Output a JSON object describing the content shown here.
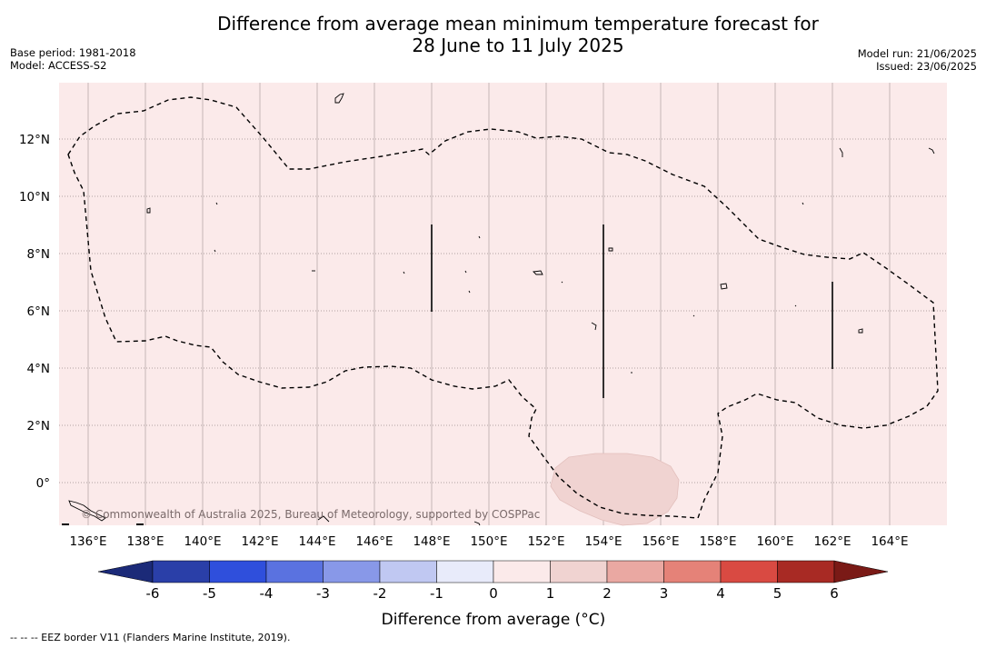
{
  "title_line1": "Difference from average mean minimum temperature forecast for",
  "title_line2": "28 June to 11 July 2025",
  "base_period": "Base period: 1981-2018",
  "model": "Model: ACCESS-S2",
  "model_run": "Model run: 21/06/2025",
  "issued": "Issued: 23/06/2025",
  "copyright": "© Commonwealth of Australia 2025, Bureau of Meteorology, supported by COSPPac",
  "footer": "--  --  -- EEZ border V11 (Flanders Marine Institute, 2019).",
  "map": {
    "lon_ticks": [
      "136°E",
      "138°E",
      "140°E",
      "142°E",
      "144°E",
      "146°E",
      "148°E",
      "150°E",
      "152°E",
      "154°E",
      "156°E",
      "158°E",
      "160°E",
      "162°E",
      "164°E"
    ],
    "lat_ticks": [
      "12°N",
      "10°N",
      "8°N",
      "6°N",
      "4°N",
      "2°N",
      "0°"
    ],
    "background_color": "#fbeaea",
    "anomaly_patch_color": "#f0d3d1",
    "anomaly_patch_value": "1 to 2 °C"
  },
  "colorbar": {
    "label": "Difference from average (°C)",
    "ticks": [
      "-6",
      "-5",
      "-4",
      "-3",
      "-2",
      "-1",
      "0",
      "1",
      "2",
      "3",
      "4",
      "5",
      "6"
    ],
    "colors": [
      "#2a3fa8",
      "#2f4fdc",
      "#5a72e0",
      "#8898e8",
      "#c0c8f2",
      "#e8ebfa",
      "#fbeaea",
      "#f0d3d1",
      "#eaa8a2",
      "#e58278",
      "#d94a42",
      "#a82a24"
    ],
    "under_color": "#1b2a78",
    "over_color": "#7a1a16"
  }
}
